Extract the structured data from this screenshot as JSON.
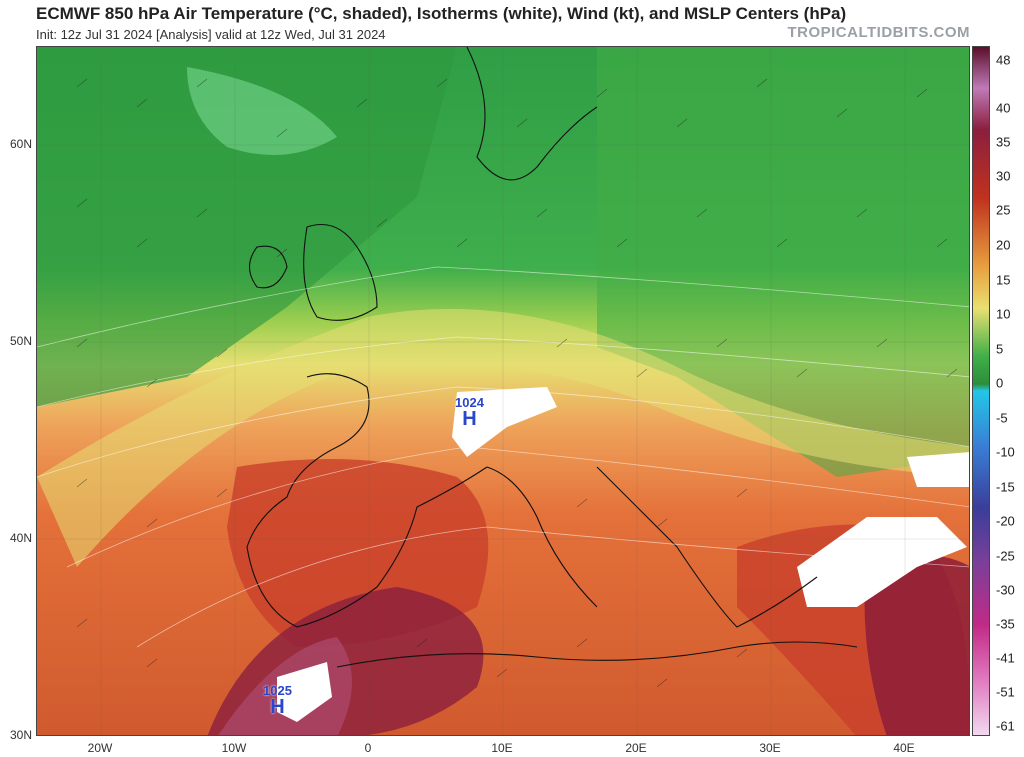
{
  "header": {
    "title": "ECMWF 850 hPa Air Temperature (°C, shaded), Isotherms (white), Wind (kt), and MSLP Centers (hPa)",
    "subtitle": "Init: 12z Jul 31 2024   [Analysis]   valid at 12z Wed, Jul 31 2024",
    "brand": "TROPICALTIDBITS.COM"
  },
  "axes": {
    "lat_labels": [
      "60N",
      "50N",
      "40N",
      "30N"
    ],
    "lon_labels": [
      "20W",
      "10W",
      "0",
      "10E",
      "20E",
      "30E",
      "40E"
    ]
  },
  "colorbar": {
    "labels": [
      "48",
      "40",
      "35",
      "30",
      "25",
      "20",
      "15",
      "10",
      "5",
      "0",
      "-5",
      "-10",
      "-15",
      "-20",
      "-25",
      "-30",
      "-35",
      "-41",
      "-51",
      "-61"
    ]
  },
  "pressure_centers": [
    {
      "type": "H",
      "value": "1024"
    },
    {
      "type": "H",
      "value": "1025"
    }
  ],
  "colors": {
    "cold_green": "#2d9b3a",
    "mild_yellow": "#e8e070",
    "warm_orange": "#e07a3a",
    "hot_red": "#c0321e",
    "very_hot_maroon": "#8a1a3a",
    "high_label": "#2a46c9"
  }
}
